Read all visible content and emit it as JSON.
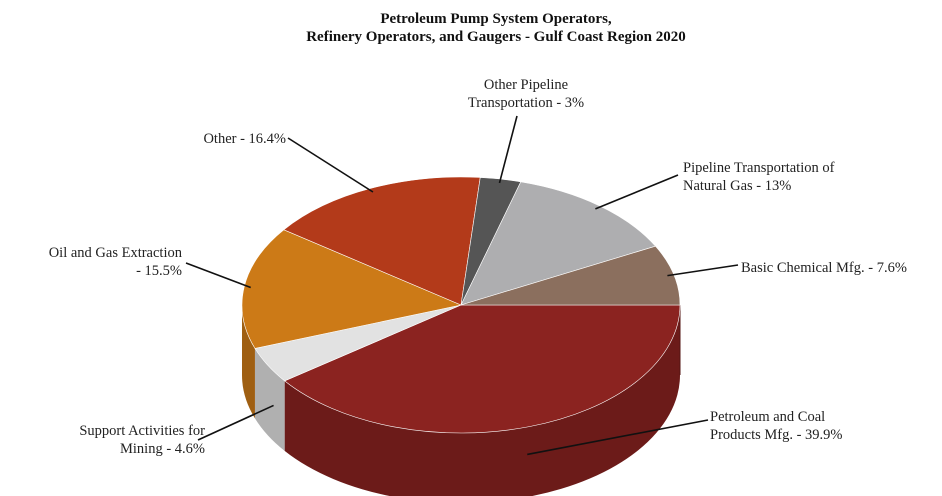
{
  "chart_data": {
    "type": "pie",
    "title": "Petroleum Pump System Operators,",
    "subtitle": "Refinery Operators, and Gaugers - Gulf Coast Region 2020",
    "style": "3d",
    "legend": "none",
    "slices": [
      {
        "label_lines": [
          "Petroleum and Coal",
          "Products Mfg. - 39.9%"
        ],
        "value": 39.9,
        "color": "#8b2320"
      },
      {
        "label_lines": [
          "Support Activities for",
          "Mining - 4.6%"
        ],
        "value": 4.6,
        "color": "#e2e2e2"
      },
      {
        "label_lines": [
          "Oil and Gas Extraction",
          "- 15.5%"
        ],
        "value": 15.5,
        "color": "#cc7a17"
      },
      {
        "label_lines": [
          "Other - 16.4%"
        ],
        "value": 16.4,
        "color": "#b33a1a"
      },
      {
        "label_lines": [
          "Other Pipeline",
          "Transportation - 3%"
        ],
        "value": 3,
        "color": "#555555"
      },
      {
        "label_lines": [
          "Pipeline Transportation of",
          "Natural Gas - 13%"
        ],
        "value": 13,
        "color": "#aeaeb0"
      },
      {
        "label_lines": [
          "Basic Chemical Mfg. - 7.6%"
        ],
        "value": 7.6,
        "color": "#8b6f5e"
      }
    ]
  }
}
